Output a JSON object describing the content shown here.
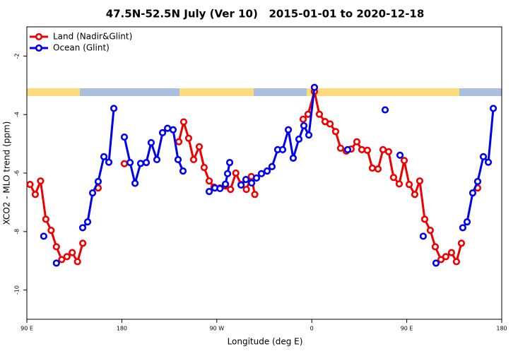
{
  "chart_data": {
    "type": "line",
    "title": "47.5N-52.5N July (Ver 10)   2015-01-01 to 2020-12-18",
    "xlabel": "Longitude (deg E)",
    "ylabel": "XCO2 - MLO trend (ppm)",
    "xlim": [
      90,
      540
    ],
    "ylim": [
      -11,
      -1
    ],
    "xticks": [
      {
        "value": 90,
        "label": "90 E"
      },
      180,
      {
        "value": 270,
        "label": "90 W"
      },
      {
        "value": 360,
        "label": "0"
      },
      {
        "value": 450,
        "label": "90 E"
      },
      {
        "value": 540,
        "label": "180"
      }
    ],
    "yticks": [
      -10,
      -8,
      -6,
      -4,
      -2
    ],
    "legend": "top-left",
    "series": [
      {
        "name": "Land (Nadir&Glint)",
        "color": "#ee0000",
        "x": [
          93,
          98,
          103,
          108,
          113,
          118,
          123,
          128,
          133,
          138,
          143,
          157.6,
          182.4,
          234,
          238.6,
          243.3,
          248,
          253.4,
          258,
          262.8,
          267.4,
          273,
          278,
          283,
          288,
          293,
          298,
          302.7,
          306,
          351.8,
          356.5,
          362.5,
          367.2,
          372.6,
          377.3,
          382.6,
          387.3,
          392.7,
          397.3,
          402.7,
          407.4,
          412.7,
          417.4,
          422.8,
          427.5,
          432.8,
          437.5,
          442.9,
          447.6,
          452.3,
          457.6,
          462.3,
          467,
          472.3,
          477,
          482.4,
          487,
          492.4,
          497.1,
          501.8,
          517.2
        ],
        "values": [
          -6.39,
          -6.73,
          -6.27,
          -7.58,
          -7.96,
          -8.52,
          -8.96,
          -8.86,
          -8.72,
          -9.03,
          -8.4,
          -6.51,
          -5.68,
          -4.93,
          -4.25,
          -4.81,
          -5.54,
          -5.1,
          -5.81,
          -6.27,
          -6.48,
          -6.51,
          -6.44,
          -6.56,
          -6.0,
          -6.39,
          -6.56,
          -6.12,
          -6.73,
          -4.16,
          -3.99,
          -3.21,
          -3.99,
          -4.24,
          -4.32,
          -4.58,
          -5.15,
          -5.25,
          -5.18,
          -4.93,
          -5.2,
          -5.22,
          -5.83,
          -5.86,
          -5.2,
          -5.27,
          -6.15,
          -6.37,
          -5.57,
          -6.39,
          -6.73,
          -6.27,
          -7.58,
          -7.96,
          -8.52,
          -8.96,
          -8.86,
          -8.72,
          -9.03,
          -8.4,
          -6.51
        ]
      },
      {
        "name": "Ocean (Glint)",
        "color": "#0000ee",
        "x": [
          106,
          118,
          142.9,
          147.6,
          152.3,
          157.6,
          163,
          167.7,
          172.4,
          182.4,
          187.8,
          192.5,
          197.8,
          203.2,
          207.8,
          213.2,
          218.6,
          223.3,
          228.6,
          233.3,
          238,
          262.8,
          268.1,
          273,
          278.2,
          280.2,
          282.2,
          293,
          297.6,
          303,
          307.6,
          312.3,
          317.7,
          322.3,
          327.7,
          332.4,
          337.8,
          342.4,
          347.8,
          352.5,
          357.2,
          362.5,
          394,
          429.5,
          443.6,
          465.6,
          477.7,
          503.1,
          507.2,
          512.5,
          517.2,
          522.6,
          527.3,
          532
        ],
        "values": [
          -8.16,
          -9.08,
          -7.87,
          -7.67,
          -6.68,
          -6.29,
          -5.44,
          -5.63,
          -3.79,
          -4.77,
          -5.64,
          -6.35,
          -5.67,
          -5.64,
          -4.96,
          -5.54,
          -4.62,
          -4.47,
          -4.52,
          -5.54,
          -5.93,
          -6.63,
          -6.51,
          -6.53,
          -6.38,
          -6.02,
          -5.64,
          -6.41,
          -6.22,
          -6.34,
          -6.17,
          -6.02,
          -5.93,
          -5.78,
          -5.2,
          -5.2,
          -4.52,
          -5.49,
          -4.84,
          -4.38,
          -4.7,
          -3.07,
          -5.2,
          -3.84,
          -5.39,
          -8.16,
          -9.08,
          -7.87,
          -7.67,
          -6.68,
          -6.29,
          -5.44,
          -5.63,
          -3.79
        ]
      }
    ]
  }
}
